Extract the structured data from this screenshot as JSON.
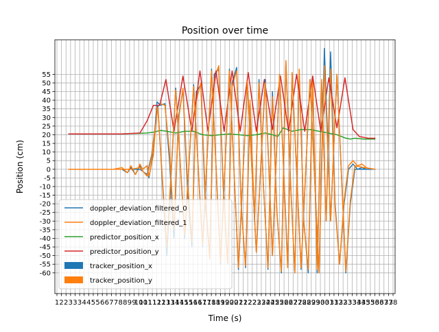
{
  "chart_data": {
    "type": "line",
    "title": "Position over time",
    "xlabel": "Time (s)",
    "ylabel": "Position (cm)",
    "xlim": [
      0.5,
      38.5
    ],
    "ylim": [
      -72,
      75
    ],
    "grid": true,
    "legend_position": "lower-left",
    "yticks": [
      -60,
      -55,
      -50,
      -45,
      -40,
      -35,
      -30,
      -25,
      -20,
      -15,
      -10,
      -5,
      0,
      5,
      10,
      15,
      20,
      25,
      30,
      35,
      40,
      45,
      50,
      55
    ],
    "xticks": [
      "1",
      "2",
      "2",
      "3",
      "3",
      "3",
      "4",
      "4",
      "5",
      "5",
      "6",
      "6",
      "7",
      "7",
      "8",
      "8",
      "9",
      "9",
      "10",
      "10",
      "11",
      "11",
      "12",
      "12",
      "13",
      "13",
      "14",
      "14",
      "15",
      "15",
      "16",
      "16",
      "17",
      "17",
      "18",
      "18",
      "19",
      "19",
      "20",
      "20",
      "21",
      "21",
      "22",
      "22",
      "23",
      "23",
      "24",
      "24",
      "25",
      "25",
      "26",
      "26",
      "27",
      "27",
      "28",
      "28",
      "29",
      "29",
      "30",
      "30",
      "31",
      "31",
      "32",
      "32",
      "33",
      "33",
      "34",
      "34",
      "35",
      "35",
      "36",
      "36",
      "37",
      "37",
      "38"
    ],
    "series": [
      {
        "name": "doppler_deviation_filtered_0",
        "color": "#1f77b4",
        "x": [
          2.0,
          4.0,
          6.0,
          7.0,
          8.0,
          8.6,
          9.0,
          9.5,
          10.0,
          10.3,
          10.8,
          11.0,
          11.5,
          11.9,
          12.3,
          12.8,
          13.3,
          13.8,
          14.3,
          14.8,
          15.3,
          15.8,
          16.3,
          16.8,
          17.3,
          17.8,
          18.3,
          18.8,
          19.3,
          19.8,
          20.3,
          20.8,
          21.3,
          21.8,
          22.3,
          22.8,
          23.3,
          23.8,
          24.3,
          24.8,
          25.3,
          25.8,
          26.3,
          26.8,
          27.3,
          27.8,
          28.3,
          28.8,
          29.3,
          29.8,
          30.3,
          30.8,
          31.3,
          31.8,
          32.3,
          32.8,
          33.3,
          33.8,
          34.3,
          34.8,
          35.3,
          35.8,
          36.3
        ],
        "y": [
          0,
          0,
          0,
          0,
          0,
          -2,
          1,
          -3,
          2,
          0,
          2,
          -5,
          10,
          39,
          37,
          38,
          5,
          -40,
          30,
          46,
          -10,
          -45,
          45,
          49,
          -20,
          -50,
          55,
          58,
          -10,
          -55,
          50,
          59,
          -20,
          -57,
          35,
          -30,
          52,
          -10,
          -58,
          45,
          -25,
          -60,
          62,
          -5,
          -60,
          55,
          -30,
          -60,
          50,
          -60,
          50,
          -30,
          68,
          -20,
          -55,
          -20,
          0,
          3,
          0,
          1,
          0,
          0,
          0
        ]
      },
      {
        "name": "doppler_deviation_filtered_1",
        "color": "#ff7f0e",
        "x": [
          2.0,
          4.0,
          6.0,
          7.0,
          8.0,
          8.6,
          9.0,
          9.5,
          10.0,
          10.3,
          10.8,
          11.0,
          11.5,
          11.9,
          12.3,
          12.8,
          13.3,
          13.8,
          14.3,
          14.8,
          15.3,
          15.8,
          16.3,
          16.8,
          17.3,
          17.8,
          18.3,
          18.8,
          19.3,
          19.8,
          20.3,
          20.8,
          21.3,
          21.8,
          22.3,
          22.8,
          23.3,
          23.8,
          24.3,
          24.8,
          25.3,
          25.8,
          26.3,
          26.8,
          27.3,
          27.8,
          28.3,
          28.8,
          29.3,
          29.8,
          30.3,
          30.8,
          31.3,
          31.8,
          32.3,
          32.8,
          33.3,
          33.8,
          34.3,
          34.8,
          35.3,
          35.8,
          36.3
        ],
        "y": [
          0,
          0,
          0,
          0,
          1,
          -2,
          2,
          -3,
          3,
          0,
          2,
          -4,
          8,
          36,
          38,
          37,
          10,
          -35,
          28,
          47,
          -5,
          -42,
          40,
          50,
          -15,
          -52,
          52,
          60,
          -8,
          -55,
          48,
          57,
          -20,
          -56,
          40,
          -28,
          50,
          -10,
          -57,
          42,
          -25,
          -59,
          63,
          -5,
          -60,
          58,
          -30,
          -58,
          54,
          -58,
          52,
          -30,
          58,
          -22,
          -55,
          -18,
          2,
          5,
          2,
          3,
          1,
          0,
          0
        ]
      },
      {
        "name": "predictor_position_x",
        "color": "#2ca02c",
        "x": [
          2,
          6,
          8,
          10,
          10.8,
          11.5,
          12.3,
          13.0,
          14.0,
          15.0,
          16.0,
          17.0,
          18.0,
          19.0,
          20.0,
          21.0,
          22.0,
          23.0,
          24.0,
          24.8,
          25.4,
          26.0,
          27.0,
          28.0,
          29.0,
          30.0,
          31.0,
          32.0,
          33.0,
          33.5,
          34.0,
          35.0,
          36.3
        ],
        "y": [
          20.5,
          20.5,
          20.5,
          20.8,
          21,
          21.5,
          22.5,
          22,
          21,
          22,
          22,
          20,
          19.5,
          20,
          20.5,
          20,
          19.5,
          20,
          21,
          20,
          19,
          24,
          22,
          23,
          23,
          22,
          21,
          20,
          18,
          17.5,
          18,
          17.5,
          17.5
        ]
      },
      {
        "name": "predictor_position_y",
        "color": "#d62728",
        "x": [
          2,
          6,
          8,
          10,
          10.8,
          11.5,
          12.2,
          12.9,
          13.8,
          14.8,
          15.8,
          16.7,
          17.6,
          18.5,
          19.4,
          20.3,
          21.2,
          22.1,
          23.0,
          23.9,
          24.8,
          25.7,
          26.6,
          27.5,
          28.4,
          29.3,
          30.2,
          31.1,
          32.0,
          32.9,
          33.8,
          34.5,
          35.5,
          36.3
        ],
        "y": [
          20.5,
          20.5,
          20.5,
          21,
          28,
          37,
          37,
          52,
          22,
          54,
          22,
          57,
          22,
          57,
          22,
          57,
          22,
          56,
          22,
          52,
          23,
          54,
          22,
          55,
          22,
          54,
          22,
          53,
          24,
          53,
          23,
          19,
          18,
          18
        ]
      },
      {
        "name": "tracker_position_x",
        "color": "#1f77b4",
        "x": [
          2.0,
          4.0,
          6.0,
          8.0,
          9.0,
          10.0,
          10.8,
          11.3,
          12.0,
          13.0,
          14.0,
          15.0,
          16.0,
          17.0,
          18.0,
          19.0,
          20.0,
          21.0,
          22.0,
          23.0,
          24.0,
          24.8,
          25.6,
          26.5,
          27.0,
          28.0,
          29.0,
          30.0,
          30.6,
          31.3,
          32.0,
          33.0,
          33.5,
          34.0,
          35.0,
          36.3
        ],
        "y": [
          0,
          0,
          0,
          0,
          0,
          0,
          -3,
          8,
          37,
          -50,
          47,
          -40,
          49,
          -45,
          58,
          -55,
          58,
          -58,
          50,
          -48,
          52,
          -50,
          55,
          -55,
          55,
          -58,
          52,
          -60,
          70,
          -30,
          55,
          -60,
          -20,
          0,
          0,
          0
        ]
      },
      {
        "name": "tracker_position_y",
        "color": "#ff7f0e",
        "x": [
          2.0,
          4.0,
          6.0,
          8.0,
          9.0,
          10.0,
          10.8,
          11.3,
          12.0,
          13.0,
          14.0,
          15.0,
          16.0,
          17.0,
          18.0,
          19.0,
          20.0,
          21.0,
          22.0,
          23.0,
          24.0,
          24.8,
          25.6,
          26.5,
          27.0,
          28.0,
          29.0,
          30.0,
          30.6,
          31.3,
          32.0,
          33.0,
          33.5,
          34.0,
          35.0,
          36.3
        ],
        "y": [
          0,
          0,
          0,
          0,
          0,
          1,
          -4,
          7,
          36,
          -45,
          46,
          -38,
          48,
          -44,
          57,
          -54,
          57,
          -57,
          51,
          -48,
          50,
          -50,
          55,
          -57,
          56,
          -57,
          52,
          -60,
          60,
          -30,
          55,
          -59,
          -18,
          2,
          1,
          0
        ]
      }
    ],
    "legend": [
      {
        "label": "doppler_deviation_filtered_0",
        "kind": "line",
        "color": "#1f77b4"
      },
      {
        "label": "doppler_deviation_filtered_1",
        "kind": "line",
        "color": "#ff7f0e"
      },
      {
        "label": "predictor_position_x",
        "kind": "line",
        "color": "#2ca02c"
      },
      {
        "label": "predictor_position_y",
        "kind": "line",
        "color": "#d62728"
      },
      {
        "label": "tracker_position_x",
        "kind": "patch",
        "color": "#1f77b4"
      },
      {
        "label": "tracker_position_y",
        "kind": "patch",
        "color": "#ff7f0e"
      }
    ]
  }
}
